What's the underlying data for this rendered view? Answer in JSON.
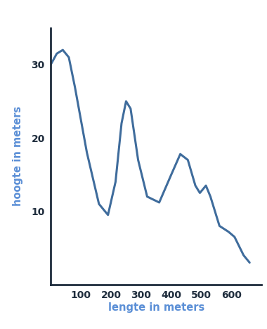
{
  "chart_data": {
    "type": "line",
    "xlabel": "lengte in meters",
    "ylabel": "hoogte in meters",
    "x": [
      0,
      20,
      40,
      60,
      80,
      120,
      160,
      190,
      215,
      235,
      250,
      265,
      290,
      320,
      360,
      400,
      430,
      455,
      480,
      495,
      515,
      530,
      560,
      590,
      610,
      640,
      660
    ],
    "values": [
      30,
      31.5,
      32,
      31,
      27,
      18,
      11,
      9.5,
      14,
      22,
      25,
      24,
      17,
      12,
      11.2,
      15,
      17.8,
      17,
      13.5,
      12.5,
      13.5,
      12,
      8,
      7.2,
      6.5,
      4,
      3
    ],
    "color": "#3f6c9c",
    "xlim": [
      0,
      700
    ],
    "ylim": [
      0,
      35
    ],
    "xticks": [
      100,
      200,
      300,
      400,
      500,
      600
    ],
    "yticks": [
      10,
      20,
      30
    ],
    "grid": false
  }
}
